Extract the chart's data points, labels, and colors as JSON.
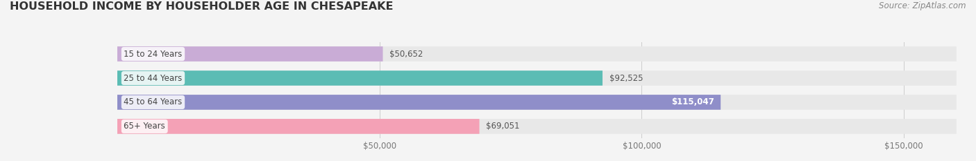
{
  "title": "HOUSEHOLD INCOME BY HOUSEHOLDER AGE IN CHESAPEAKE",
  "source": "Source: ZipAtlas.com",
  "categories": [
    "15 to 24 Years",
    "25 to 44 Years",
    "45 to 64 Years",
    "65+ Years"
  ],
  "values": [
    50652,
    92525,
    115047,
    69051
  ],
  "bar_colors": [
    "#c9acd6",
    "#5bbcb4",
    "#8f8ec9",
    "#f4a1b6"
  ],
  "bar_bg_color": "#e8e8e8",
  "xlim_max": 160000,
  "xticks": [
    50000,
    100000,
    150000
  ],
  "xtick_labels": [
    "$50,000",
    "$100,000",
    "$150,000"
  ],
  "title_fontsize": 11.5,
  "source_fontsize": 8.5,
  "bar_label_fontsize": 8.5,
  "category_fontsize": 8.5,
  "background_color": "#f4f4f4",
  "figsize": [
    14.06,
    2.33
  ],
  "dpi": 100
}
